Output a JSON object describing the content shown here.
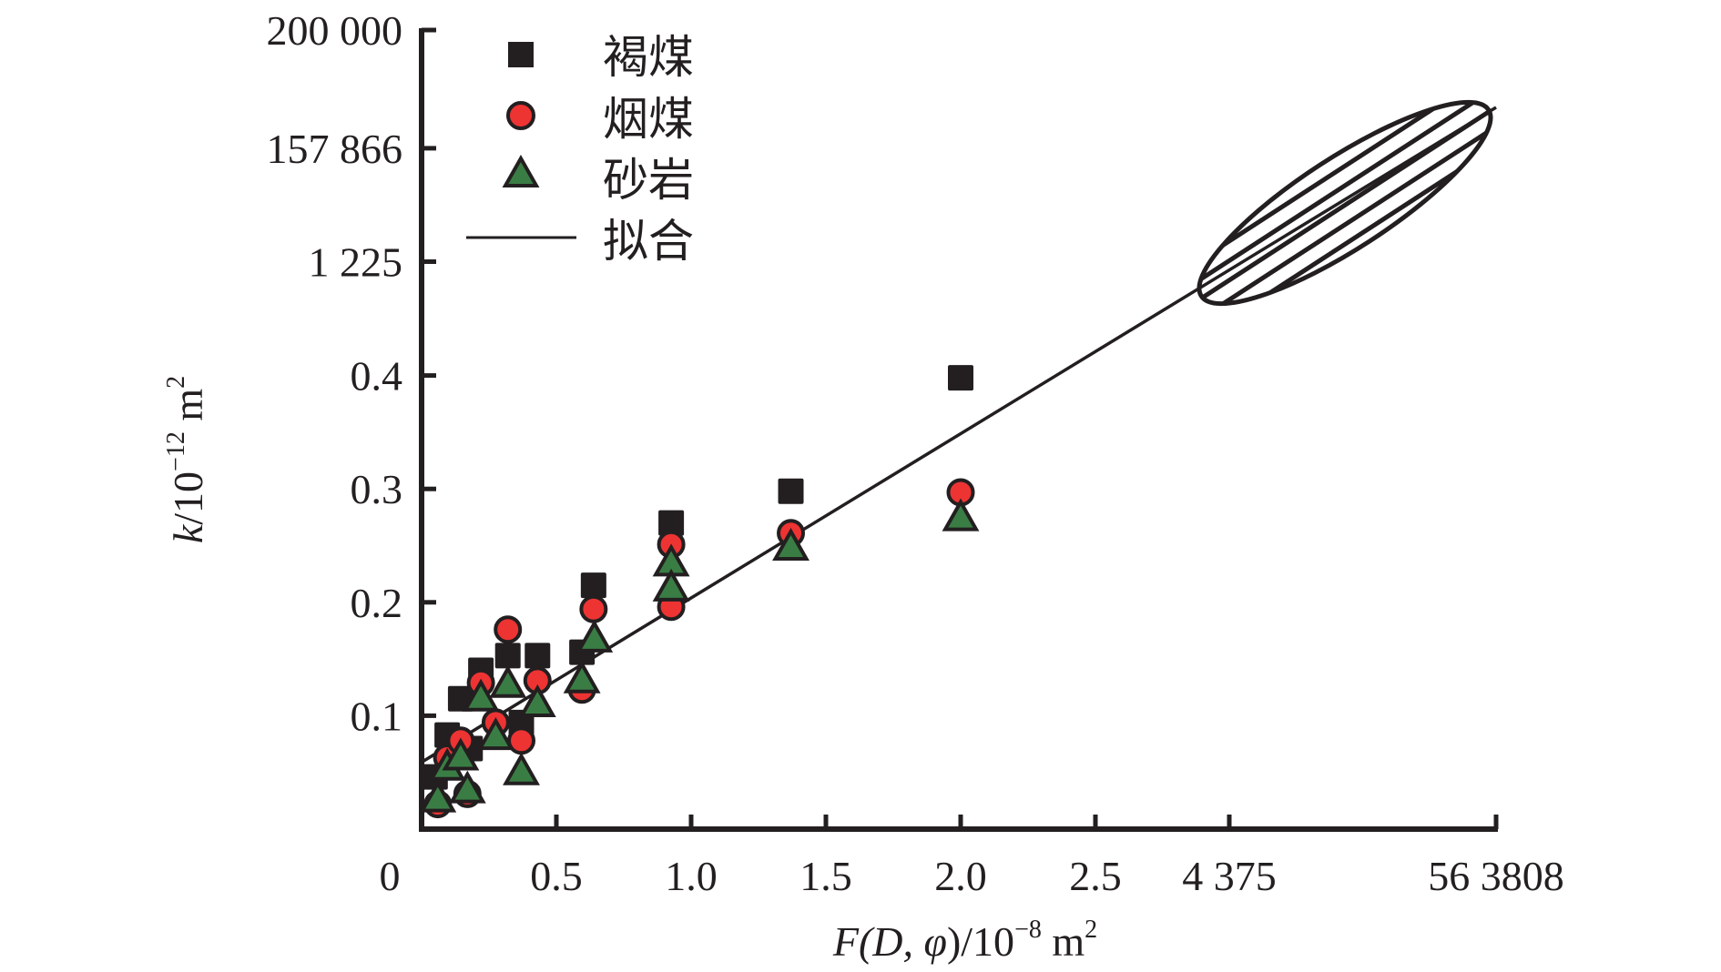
{
  "chart_data": {
    "type": "scatter",
    "title": "",
    "xlabel": {
      "pre": "F(D, ",
      "phi": "φ",
      "post": ")/10",
      "exp": "−8",
      "unit": " m",
      "unit_exp": "2"
    },
    "ylabel": {
      "k": "k",
      "post": "/10",
      "exp": "−12",
      "unit": " m",
      "unit_exp": "2"
    },
    "x_axis": {
      "linear_range": [
        0,
        2.5
      ],
      "ticks": [
        {
          "value": 0,
          "label": "0"
        },
        {
          "value": 0.5,
          "label": "0.5"
        },
        {
          "value": 1.0,
          "label": "1.0"
        },
        {
          "value": 1.5,
          "label": "1.5"
        },
        {
          "value": 2.0,
          "label": "2.0"
        },
        {
          "value": 2.5,
          "label": "2.5"
        },
        {
          "value": 4375,
          "label": "4 375"
        },
        {
          "value": 563808,
          "label": "56 3808"
        }
      ]
    },
    "y_axis": {
      "linear_range": [
        0,
        0.4
      ],
      "ticks": [
        {
          "value": 0,
          "label": "0"
        },
        {
          "value": 0.1,
          "label": "0.1"
        },
        {
          "value": 0.2,
          "label": "0.2"
        },
        {
          "value": 0.3,
          "label": "0.3"
        },
        {
          "value": 0.4,
          "label": "0.4"
        },
        {
          "value": 1225,
          "label": "1 225"
        },
        {
          "value": 157866,
          "label": "157 866"
        },
        {
          "value": 200000,
          "label": "200 000"
        }
      ]
    },
    "grid": false,
    "legend_position": "top-left",
    "legend": [
      {
        "name": "褐煤",
        "marker": "square"
      },
      {
        "name": "烟煤",
        "marker": "circle"
      },
      {
        "name": "砂岩",
        "marker": "triangle"
      },
      {
        "name": "拟合",
        "marker": "line"
      }
    ],
    "series": [
      {
        "name": "褐煤",
        "marker": "square",
        "color": "#231f20",
        "points": [
          [
            0.05,
            0.046
          ],
          [
            0.095,
            0.083
          ],
          [
            0.145,
            0.115
          ],
          [
            0.18,
            0.071
          ],
          [
            0.22,
            0.14
          ],
          [
            0.32,
            0.153
          ],
          [
            0.37,
            0.094
          ],
          [
            0.43,
            0.153
          ],
          [
            0.595,
            0.156
          ],
          [
            0.638,
            0.215
          ],
          [
            0.926,
            0.27
          ],
          [
            1.37,
            0.298
          ],
          [
            2.0,
            0.398
          ]
        ]
      },
      {
        "name": "烟煤",
        "marker": "circle",
        "color": "#ee3333",
        "points": [
          [
            0.06,
            0.022
          ],
          [
            0.095,
            0.063
          ],
          [
            0.145,
            0.078
          ],
          [
            0.17,
            0.031
          ],
          [
            0.22,
            0.129
          ],
          [
            0.275,
            0.094
          ],
          [
            0.32,
            0.176
          ],
          [
            0.37,
            0.078
          ],
          [
            0.43,
            0.131
          ],
          [
            0.595,
            0.123
          ],
          [
            0.638,
            0.194
          ],
          [
            0.926,
            0.251
          ],
          [
            0.926,
            0.196
          ],
          [
            1.37,
            0.261
          ],
          [
            2.0,
            0.297
          ]
        ]
      },
      {
        "name": "砂岩",
        "marker": "triangle",
        "color": "#3a7d44",
        "points": [
          [
            0.06,
            0.026
          ],
          [
            0.095,
            0.054
          ],
          [
            0.145,
            0.063
          ],
          [
            0.17,
            0.034
          ],
          [
            0.22,
            0.115
          ],
          [
            0.275,
            0.081
          ],
          [
            0.32,
            0.127
          ],
          [
            0.37,
            0.05
          ],
          [
            0.43,
            0.11
          ],
          [
            0.595,
            0.131
          ],
          [
            0.641,
            0.167
          ],
          [
            0.926,
            0.234
          ],
          [
            0.926,
            0.212
          ],
          [
            1.37,
            0.248
          ],
          [
            2.0,
            0.274
          ]
        ]
      }
    ],
    "fit_line": {
      "name": "拟合",
      "from": [
        0,
        0.059
      ],
      "note": "line continues linearly through the extended axis region to the upper-right end (x≈563808, y≈200000)"
    },
    "highlight_region": {
      "shape": "ellipse",
      "fill": "horizontal hatch",
      "x_range": [
        4375,
        563808
      ],
      "y_range": [
        1225,
        200000
      ]
    }
  }
}
